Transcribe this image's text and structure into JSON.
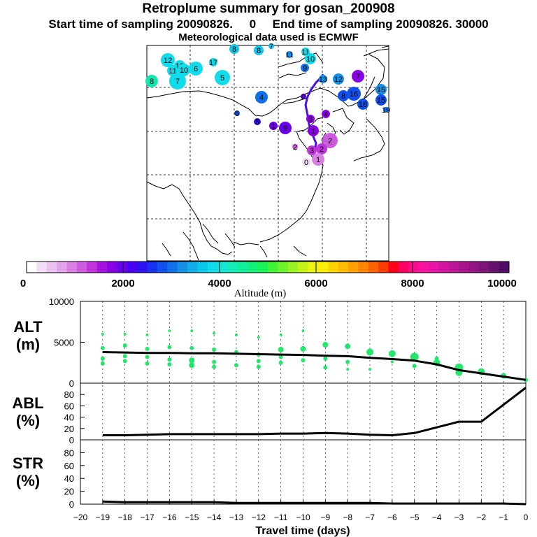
{
  "titles": {
    "main": "Retroplume summary for gosan_200908",
    "sampling": "Start time of sampling 20090826.     0     End time of sampling 20090826. 30000",
    "meteo": "Meteorological data used is ECMWF"
  },
  "colorbar": {
    "label": "Altitude  (m)",
    "ticks": [
      "0",
      "2000",
      "4000",
      "6000",
      "8000",
      "10000"
    ],
    "colors": [
      "#ffffff",
      "#f3dcf6",
      "#ecc0f0",
      "#e3a2ea",
      "#da80e4",
      "#cf5cde",
      "#bf34dc",
      "#a812e0",
      "#8a00e6",
      "#6a00ee",
      "#4a00f2",
      "#2e10f4",
      "#1830f2",
      "#1050ee",
      "#1070ea",
      "#1490e6",
      "#10aee8",
      "#08c8ec",
      "#10dceb",
      "#14e6d8",
      "#14ecb8",
      "#10f09a",
      "#12f278",
      "#18f456",
      "#42f436",
      "#6cf428",
      "#98f41e",
      "#c4f416",
      "#eaf40e",
      "#fcec06",
      "#fed400",
      "#ffbc00",
      "#ffa000",
      "#ff8400",
      "#ff6200",
      "#ff3c00",
      "#ff0018",
      "#ff0060",
      "#ff0a8c",
      "#f8149e",
      "#ea14a4",
      "#d414a0",
      "#be1498",
      "#a8148e",
      "#921484",
      "#7c147a",
      "#661070",
      "#500c64"
    ]
  },
  "map": {
    "labels": [
      {
        "t": "12",
        "c": "#10dceb"
      },
      {
        "t": "19",
        "c": "#10dceb"
      },
      {
        "t": "11",
        "c": "#10dceb"
      },
      {
        "t": "10",
        "c": "#10dceb"
      },
      {
        "t": "6",
        "c": "#10dceb"
      },
      {
        "t": "17",
        "c": "#10dceb"
      },
      {
        "t": "5",
        "c": "#10dceb"
      },
      {
        "t": "7",
        "c": "#10dceb"
      },
      {
        "t": "8",
        "c": "#14e6b0"
      },
      {
        "t": "8",
        "c": "#10c8ec"
      },
      {
        "t": "8",
        "c": "#10c8ec"
      },
      {
        "t": "7",
        "c": "#10c8ec"
      },
      {
        "t": "11",
        "c": "#1490e6"
      },
      {
        "t": "11",
        "c": "#10dceb"
      },
      {
        "t": "10",
        "c": "#10dceb"
      },
      {
        "t": "9",
        "c": "#1070ea"
      },
      {
        "t": "4",
        "c": "#1070ea"
      },
      {
        "t": "6",
        "c": "#1050ee"
      },
      {
        "t": "5",
        "c": "#2e10f4"
      },
      {
        "t": "13",
        "c": "#1490e6"
      },
      {
        "t": "12",
        "c": "#1490e6"
      },
      {
        "t": "7",
        "c": "#8a00e6"
      },
      {
        "t": "8",
        "c": "#1050ee"
      },
      {
        "t": "16",
        "c": "#1050ee"
      },
      {
        "t": "18",
        "c": "#1050ee"
      },
      {
        "t": "15",
        "c": "#1490e6"
      },
      {
        "t": "15",
        "c": "#1050ee"
      },
      {
        "t": "19",
        "c": "#1070ea"
      },
      {
        "t": "1",
        "c": "#6a00ee"
      },
      {
        "t": "9",
        "c": "#6a00ee"
      },
      {
        "t": "0",
        "c": "#6a00ee"
      },
      {
        "t": "3",
        "c": "#8a00e6"
      },
      {
        "t": "1",
        "c": "#8a00e6"
      },
      {
        "t": "4",
        "c": "#8a00e6"
      },
      {
        "t": "2",
        "c": "#cf5cde"
      },
      {
        "t": "2",
        "c": "#bf34dc"
      },
      {
        "t": "3",
        "c": "#bf34dc"
      },
      {
        "t": "1",
        "c": "#da80e4"
      },
      {
        "t": "0",
        "c": "#f3dcf6"
      },
      {
        "t": "2",
        "c": "#cf5cde"
      }
    ]
  },
  "chart_data": [
    {
      "type": "scatter+line",
      "panel": "ALT",
      "ylabel": "ALT\n(m)",
      "ylim": [
        0,
        10000
      ],
      "yticks": [
        "10000",
        "5000",
        "0"
      ],
      "xlim": [
        -20,
        0
      ],
      "line": {
        "x": [
          -19,
          -18,
          -17,
          -16,
          -15,
          -14,
          -13,
          -12,
          -11,
          -10,
          -9,
          -8,
          -7,
          -6,
          -5,
          -4,
          -3,
          -2,
          -1,
          0
        ],
        "y": [
          3800,
          3750,
          3700,
          3700,
          3650,
          3650,
          3600,
          3550,
          3500,
          3450,
          3350,
          3300,
          3100,
          2950,
          2750,
          2300,
          1600,
          1200,
          800,
          400
        ]
      },
      "points": {
        "x": [
          -19,
          -19,
          -19,
          -19,
          -18,
          -18,
          -18,
          -18,
          -17,
          -17,
          -17,
          -17,
          -16,
          -16,
          -16,
          -16,
          -15,
          -15,
          -15,
          -15,
          -14,
          -14,
          -14,
          -14,
          -13,
          -13,
          -13,
          -12,
          -12,
          -12,
          -12,
          -11,
          -11,
          -11,
          -11,
          -10,
          -10,
          -10,
          -9,
          -9,
          -9,
          -8,
          -8,
          -8,
          -7,
          -7,
          -6,
          -6,
          -5,
          -5,
          -4,
          -4,
          -3,
          -3,
          -2,
          -1,
          0
        ],
        "y": [
          6000,
          4300,
          3000,
          2400,
          6000,
          4600,
          3300,
          2700,
          5900,
          4200,
          3200,
          2400,
          6400,
          4400,
          2900,
          2300,
          6400,
          4300,
          2800,
          2200,
          6100,
          4100,
          2600,
          2000,
          5900,
          3800,
          2200,
          5600,
          3500,
          2700,
          2000,
          5900,
          4100,
          3200,
          2500,
          6400,
          4200,
          2800,
          4700,
          3000,
          1900,
          4500,
          2600,
          1700,
          3800,
          1700,
          3600,
          2600,
          3200,
          2100,
          3000,
          2500,
          1900,
          1300,
          1400,
          900,
          400
        ],
        "r": [
          2,
          3,
          3,
          3,
          2,
          3,
          3,
          3,
          2,
          3,
          3,
          3,
          2,
          3,
          3,
          3,
          2,
          3,
          4,
          4,
          2,
          3,
          3,
          3,
          2,
          3,
          3,
          2,
          3,
          3,
          3,
          2,
          4,
          3,
          3,
          2,
          4,
          3,
          4,
          3,
          3,
          4,
          3,
          2,
          5,
          2,
          5,
          2,
          6,
          3,
          3,
          5,
          6,
          5,
          5,
          4,
          3
        ]
      }
    },
    {
      "type": "line",
      "panel": "ABL",
      "ylabel": "ABL\n(%)",
      "ylim": [
        0,
        100
      ],
      "yticks": [
        "80",
        "60",
        "40",
        "20",
        "0"
      ],
      "xlim": [
        -20,
        0
      ],
      "x": [
        -19,
        -18,
        -17,
        -16,
        -15,
        -14,
        -13,
        -12,
        -11,
        -10,
        -9,
        -8,
        -7,
        -6,
        -5,
        -4,
        -3,
        -2,
        -1,
        0
      ],
      "y": [
        8,
        8,
        9,
        10,
        10,
        10,
        10,
        10,
        11,
        11,
        12,
        11,
        9,
        8,
        12,
        22,
        32,
        32,
        62,
        92
      ]
    },
    {
      "type": "line",
      "panel": "STR",
      "ylabel": "STR\n(%)",
      "ylim": [
        0,
        100
      ],
      "yticks": [
        "80",
        "60",
        "40",
        "20",
        "0"
      ],
      "xlim": [
        -20,
        0
      ],
      "x": [
        -19,
        -18,
        -17,
        -16,
        -15,
        -14,
        -13,
        -12,
        -11,
        -10,
        -9,
        -8,
        -7,
        -6,
        -5,
        -4,
        -3,
        -2,
        -1,
        0
      ],
      "y": [
        4,
        3,
        3,
        3,
        3,
        3,
        2,
        2,
        2,
        2,
        2,
        2,
        2,
        1,
        1,
        1,
        1,
        1,
        1,
        0
      ]
    }
  ],
  "xaxis": {
    "ticks": [
      "−20",
      "−19",
      "−18",
      "−17",
      "−16",
      "−15",
      "−14",
      "−13",
      "−12",
      "−11",
      "−10",
      "−9",
      "−8",
      "−7",
      "−6",
      "−5",
      "−4",
      "−3",
      "−2",
      "−1",
      "0"
    ],
    "label": "Travel time (days)"
  },
  "panel_labels": {
    "alt": [
      "ALT",
      "(m)"
    ],
    "abl": [
      "ABL",
      "(%)"
    ],
    "str": [
      "STR",
      "(%)"
    ]
  }
}
